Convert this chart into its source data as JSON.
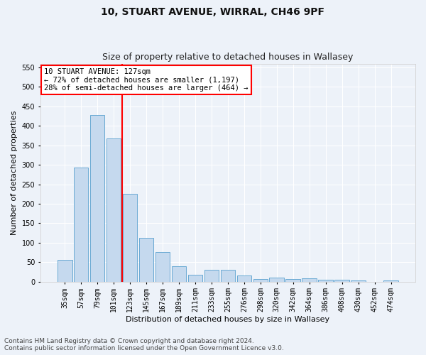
{
  "title1": "10, STUART AVENUE, WIRRAL, CH46 9PF",
  "title2": "Size of property relative to detached houses in Wallasey",
  "xlabel": "Distribution of detached houses by size in Wallasey",
  "ylabel": "Number of detached properties",
  "categories": [
    "35sqm",
    "57sqm",
    "79sqm",
    "101sqm",
    "123sqm",
    "145sqm",
    "167sqm",
    "189sqm",
    "211sqm",
    "233sqm",
    "255sqm",
    "276sqm",
    "298sqm",
    "320sqm",
    "342sqm",
    "364sqm",
    "386sqm",
    "408sqm",
    "430sqm",
    "452sqm",
    "474sqm"
  ],
  "values": [
    55,
    293,
    428,
    367,
    225,
    113,
    76,
    39,
    18,
    30,
    30,
    16,
    6,
    10,
    6,
    9,
    4,
    5,
    2,
    0,
    3
  ],
  "bar_color": "#c5d9ee",
  "bar_edge_color": "#6aaad4",
  "vline_index": 3,
  "annotation_text": "10 STUART AVENUE: 127sqm\n← 72% of detached houses are smaller (1,197)\n28% of semi-detached houses are larger (464) →",
  "annotation_box_facecolor": "white",
  "annotation_box_edgecolor": "red",
  "vline_color": "red",
  "ylim": [
    0,
    560
  ],
  "yticks": [
    0,
    50,
    100,
    150,
    200,
    250,
    300,
    350,
    400,
    450,
    500,
    550
  ],
  "background_color": "#edf2f9",
  "grid_color": "white",
  "footer_line1": "Contains HM Land Registry data © Crown copyright and database right 2024.",
  "footer_line2": "Contains public sector information licensed under the Open Government Licence v3.0.",
  "title1_fontsize": 10,
  "title2_fontsize": 9,
  "xlabel_fontsize": 8,
  "ylabel_fontsize": 8,
  "tick_fontsize": 7,
  "annotation_fontsize": 7.5,
  "footer_fontsize": 6.5
}
